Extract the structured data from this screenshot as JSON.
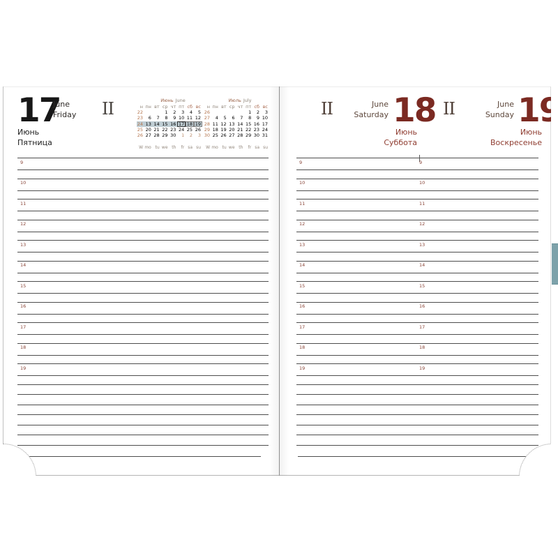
{
  "page": {
    "left": {
      "day": "17",
      "month_en": "June",
      "weekday_en": "Friday",
      "month_ru": "Июнь",
      "weekday_ru": "Пятница",
      "zodiac": "II"
    },
    "right": [
      {
        "day": "18",
        "month_en": "June",
        "weekday_en": "Saturday",
        "month_ru": "Июнь",
        "weekday_ru": "Суббота",
        "zodiac": "II"
      },
      {
        "day": "19",
        "month_en": "June",
        "weekday_en": "Sunday",
        "month_ru": "Июнь",
        "weekday_ru": "Воскресенье",
        "zodiac": "II"
      }
    ]
  },
  "mini_calendars": [
    {
      "title_ru": "Июнь",
      "title_en": "June",
      "week_col_header": "н",
      "day_headers": [
        "пн",
        "вт",
        "ср",
        "чт",
        "пт",
        "сб",
        "вс"
      ],
      "weeks": [
        {
          "num": "22",
          "days": [
            "",
            "",
            "1",
            "2",
            "3",
            "4",
            "5"
          ]
        },
        {
          "num": "23",
          "days": [
            "6",
            "7",
            "8",
            "9",
            "10",
            "11",
            "12"
          ]
        },
        {
          "num": "24",
          "days": [
            "13",
            "14",
            "15",
            "16",
            "17",
            "18",
            "19"
          ],
          "highlight": true,
          "boxed": [
            "18",
            "19"
          ],
          "today": "17"
        },
        {
          "num": "25",
          "days": [
            "20",
            "21",
            "22",
            "23",
            "24",
            "25",
            "26"
          ]
        },
        {
          "num": "26",
          "days": [
            "27",
            "28",
            "29",
            "30",
            "1",
            "2",
            "3"
          ],
          "muted_from": 4
        }
      ],
      "footer": [
        "W",
        "mo",
        "tu",
        "we",
        "th",
        "fr",
        "sa",
        "su"
      ]
    },
    {
      "title_ru": "Июль",
      "title_en": "July",
      "week_col_header": "н",
      "day_headers": [
        "пн",
        "вт",
        "ср",
        "чт",
        "пт",
        "сб",
        "вс"
      ],
      "weeks": [
        {
          "num": "26",
          "days": [
            "",
            "",
            "",
            "",
            "1",
            "2",
            "3"
          ]
        },
        {
          "num": "27",
          "days": [
            "4",
            "5",
            "6",
            "7",
            "8",
            "9",
            "10"
          ]
        },
        {
          "num": "28",
          "days": [
            "11",
            "12",
            "13",
            "14",
            "15",
            "16",
            "17"
          ]
        },
        {
          "num": "29",
          "days": [
            "18",
            "19",
            "20",
            "21",
            "22",
            "23",
            "24"
          ]
        },
        {
          "num": "30",
          "days": [
            "25",
            "26",
            "27",
            "28",
            "29",
            "30",
            "31"
          ]
        }
      ],
      "footer": [
        "W",
        "mo",
        "tu",
        "we",
        "th",
        "fr",
        "sa",
        "su"
      ]
    }
  ],
  "schedule": {
    "hours": [
      "9",
      "10",
      "11",
      "12",
      "13",
      "14",
      "15",
      "16",
      "17",
      "18",
      "19"
    ],
    "extra_lines": 7
  },
  "colors": {
    "weekend_accent": "#7b2a22",
    "russian_weekend_text": "#8f3c30",
    "hour_label": "#8a4538",
    "week_highlight": "#bfcdd3",
    "week_number": "#b5764f",
    "rule_line": "#4d4d4d",
    "bookmark": "#7da2aa"
  }
}
